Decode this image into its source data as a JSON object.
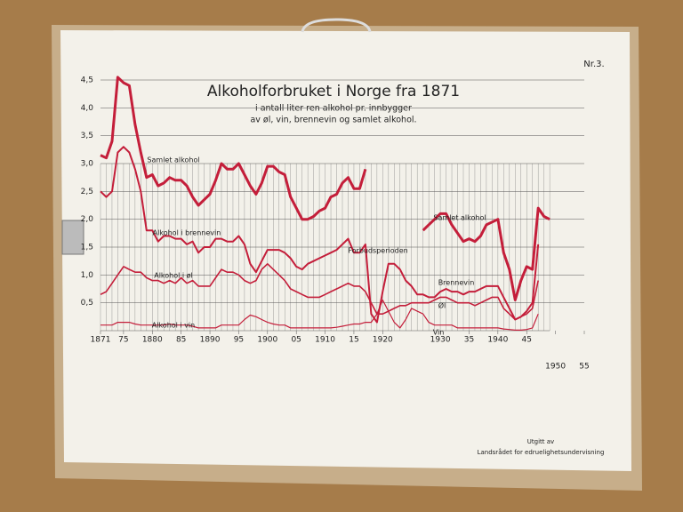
{
  "chart_data": {
    "type": "line",
    "title": "Alkoholforbruket i Norge fra 1871",
    "subtitle": [
      "i antall liter ren alkohol pr. innbygger",
      "av øl, vin, brennevin og samlet alkohol."
    ],
    "corner_label": "Nr.3.",
    "footer": [
      "Utgitt av",
      "Landsrådet for edruelighetsundervisning"
    ],
    "x": [
      1871,
      1872,
      1873,
      1874,
      1875,
      1876,
      1877,
      1878,
      1879,
      1880,
      1881,
      1882,
      1883,
      1884,
      1885,
      1886,
      1887,
      1888,
      1889,
      1890,
      1891,
      1892,
      1893,
      1894,
      1895,
      1896,
      1897,
      1898,
      1899,
      1900,
      1901,
      1902,
      1903,
      1904,
      1905,
      1906,
      1907,
      1908,
      1909,
      1910,
      1911,
      1912,
      1913,
      1914,
      1915,
      1916,
      1917,
      1918,
      1919,
      1920,
      1921,
      1922,
      1923,
      1924,
      1925,
      1926,
      1927,
      1928,
      1929,
      1930,
      1931,
      1932,
      1933,
      1934,
      1935,
      1936,
      1937,
      1938,
      1939,
      1940,
      1941,
      1942,
      1943,
      1944,
      1945,
      1946,
      1947,
      1948,
      1949
    ],
    "series": [
      {
        "name": "Samlet alkohol",
        "color": "#c41e3a",
        "width": 3,
        "values": [
          3.15,
          3.1,
          3.4,
          4.55,
          4.45,
          4.4,
          3.7,
          3.2,
          2.75,
          2.8,
          2.6,
          2.65,
          2.75,
          2.7,
          2.7,
          2.6,
          2.4,
          2.25,
          2.35,
          2.45,
          2.7,
          3.0,
          2.9,
          2.9,
          3.0,
          2.8,
          2.6,
          2.45,
          2.65,
          2.95,
          2.95,
          2.85,
          2.8,
          2.4,
          2.2,
          2.0,
          2.0,
          2.05,
          2.15,
          2.2,
          2.4,
          2.45,
          2.65,
          2.75,
          2.55,
          2.55,
          2.9,
          null,
          null,
          null,
          null,
          null,
          null,
          null,
          null,
          null,
          1.8,
          1.9,
          2.0,
          2.1,
          2.1,
          1.9,
          1.75,
          1.6,
          1.65,
          1.6,
          1.7,
          1.9,
          1.95,
          2.0,
          1.4,
          1.1,
          0.55,
          0.9,
          1.15,
          1.1,
          2.2,
          2.05,
          2.0
        ]
      },
      {
        "name": "Alkohol i brennevin",
        "color": "#c41e3a",
        "width": 2,
        "values": [
          2.5,
          2.4,
          2.5,
          3.2,
          3.3,
          3.2,
          2.9,
          2.5,
          1.8,
          1.8,
          1.6,
          1.7,
          1.7,
          1.65,
          1.65,
          1.55,
          1.6,
          1.4,
          1.5,
          1.5,
          1.65,
          1.65,
          1.6,
          1.6,
          1.7,
          1.55,
          1.2,
          1.05,
          1.25,
          1.45,
          1.45,
          1.45,
          1.4,
          1.3,
          1.15,
          1.1,
          1.2,
          1.25,
          1.3,
          1.35,
          1.4,
          1.45,
          1.55,
          1.65,
          1.4,
          1.4,
          1.55,
          0.3,
          0.15,
          0.7,
          1.2,
          1.2,
          1.1,
          0.9,
          0.8,
          0.65,
          0.65,
          0.6,
          0.6,
          0.7,
          0.75,
          0.7,
          0.7,
          0.65,
          0.7,
          0.7,
          0.75,
          0.8,
          0.8,
          0.8,
          0.6,
          0.4,
          0.2,
          0.25,
          0.35,
          0.5,
          1.55,
          null,
          null
        ]
      },
      {
        "name": "Alkohol i øl",
        "color": "#c41e3a",
        "width": 1.6,
        "values": [
          0.65,
          0.7,
          0.85,
          1.0,
          1.15,
          1.1,
          1.05,
          1.05,
          0.95,
          0.9,
          0.9,
          0.85,
          0.9,
          0.85,
          0.95,
          0.85,
          0.9,
          0.8,
          0.8,
          0.8,
          0.95,
          1.1,
          1.05,
          1.05,
          1.0,
          0.9,
          0.85,
          0.9,
          1.1,
          1.2,
          1.1,
          1.0,
          0.9,
          0.75,
          0.7,
          0.65,
          0.6,
          0.6,
          0.6,
          0.65,
          0.7,
          0.75,
          0.8,
          0.85,
          0.8,
          0.8,
          0.7,
          0.5,
          0.3,
          0.3,
          0.35,
          0.4,
          0.45,
          0.45,
          0.5,
          0.5,
          0.5,
          0.5,
          0.55,
          0.6,
          0.6,
          0.55,
          0.5,
          0.5,
          0.5,
          0.45,
          0.5,
          0.55,
          0.6,
          0.6,
          0.4,
          0.3,
          0.2,
          0.25,
          0.3,
          0.4,
          0.9,
          null,
          null
        ]
      },
      {
        "name": "Alkohol i vin",
        "color": "#c41e3a",
        "width": 1.2,
        "values": [
          0.1,
          0.1,
          0.1,
          0.15,
          0.15,
          0.15,
          0.12,
          0.1,
          0.1,
          0.1,
          0.1,
          0.1,
          0.12,
          0.1,
          0.1,
          0.1,
          0.08,
          0.05,
          0.05,
          0.05,
          0.05,
          0.1,
          0.1,
          0.1,
          0.1,
          0.2,
          0.28,
          0.25,
          0.2,
          0.15,
          0.12,
          0.1,
          0.1,
          0.05,
          0.05,
          0.05,
          0.05,
          0.05,
          0.05,
          0.05,
          0.05,
          0.06,
          0.08,
          0.1,
          0.12,
          0.12,
          0.15,
          0.15,
          0.3,
          0.55,
          0.35,
          0.15,
          0.05,
          0.2,
          0.4,
          0.35,
          0.3,
          0.15,
          0.1,
          0.1,
          0.1,
          0.1,
          0.05,
          0.05,
          0.05,
          0.05,
          0.05,
          0.05,
          0.05,
          0.05,
          0.03,
          0.02,
          0.01,
          0.01,
          0.02,
          0.05,
          0.3,
          null,
          null
        ]
      }
    ],
    "annotations": [
      "Samlet alkohol",
      "Brennevin",
      "Øl",
      "Vin",
      "Forbudsperioden"
    ],
    "xlim": [
      1871,
      1955
    ],
    "xticks": [
      1871,
      {
        "value": 1875,
        "label": "75"
      },
      1880,
      {
        "value": 1885,
        "label": "85"
      },
      1890,
      {
        "value": 1895,
        "label": "95"
      },
      1900,
      {
        "value": 1905,
        "label": "05"
      },
      1910,
      {
        "value": 1915,
        "label": "15"
      },
      1920,
      1930,
      {
        "value": 1935,
        "label": "35"
      },
      1940,
      {
        "value": 1945,
        "label": "45"
      },
      1950,
      {
        "value": 1955,
        "label": "55"
      }
    ],
    "ylim": [
      0,
      4.5
    ],
    "yticks": [
      {
        "value": 0.5,
        "label": "0,5"
      },
      {
        "value": 1.0,
        "label": "1,0"
      },
      {
        "value": 1.5,
        "label": "1,5"
      },
      {
        "value": 2.0,
        "label": "2,0"
      },
      {
        "value": 2.5,
        "label": "2,5"
      },
      {
        "value": 3.0,
        "label": "3,0"
      },
      {
        "value": 3.5,
        "label": "3,5"
      },
      {
        "value": 4.0,
        "label": "4,0"
      },
      {
        "value": 4.5,
        "label": "4,5"
      }
    ],
    "grid": true
  }
}
